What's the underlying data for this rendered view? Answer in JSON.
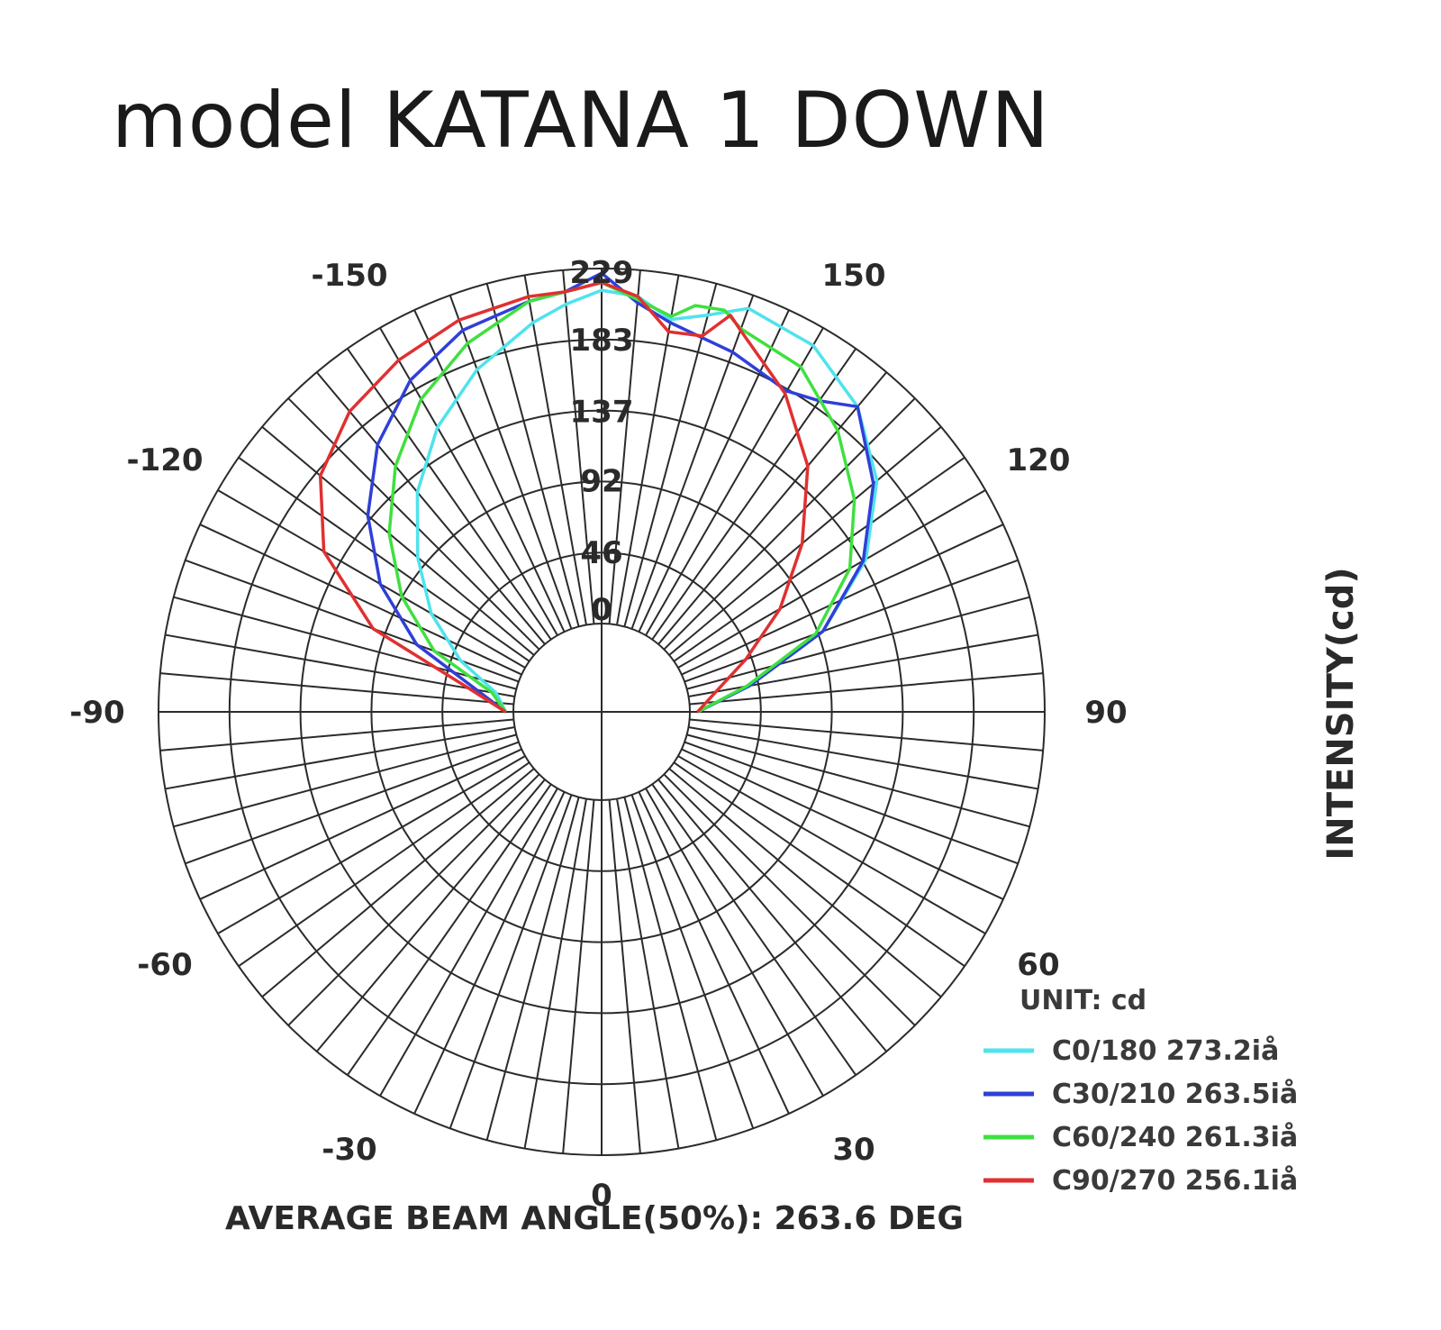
{
  "title": "model KATANA 1 DOWN",
  "chart_data": {
    "type": "polar",
    "angle_ticks": [
      {
        "angle": -150,
        "label": "-150"
      },
      {
        "angle": 150,
        "label": "150"
      },
      {
        "angle": -120,
        "label": "-120"
      },
      {
        "angle": 120,
        "label": "120"
      },
      {
        "angle": -90,
        "label": "-90"
      },
      {
        "angle": 90,
        "label": "90"
      },
      {
        "angle": -60,
        "label": "-60"
      },
      {
        "angle": 60,
        "label": "60"
      },
      {
        "angle": -30,
        "label": "-30"
      },
      {
        "angle": 30,
        "label": "30"
      },
      {
        "angle": 0,
        "label": "0"
      }
    ],
    "radial_ticks": [
      0,
      46,
      92,
      137,
      183,
      229
    ],
    "radial_tick_labels": [
      "0",
      "46",
      "92",
      "137",
      "183",
      "229"
    ],
    "rmax": 229,
    "grid": true,
    "ylabel": "INTENSITY(cd)",
    "unit_label": "UNIT: cd",
    "legend_position": "bottom-right",
    "footer": "AVERAGE BEAM ANGLE(50%): 263.6 DEG",
    "series": [
      {
        "name": "C0/180 273.2iå",
        "color": "#4fe3ec",
        "angles": [
          -90,
          -100,
          -110,
          -120,
          -130,
          -140,
          -150,
          -160,
          -170,
          -175,
          180,
          175,
          170,
          165,
          160,
          150,
          140,
          130,
          120,
          110,
          100,
          90
        ],
        "values": [
          5,
          12,
          40,
          70,
          98,
          128,
          155,
          178,
          198,
          207,
          215,
          212,
          200,
          208,
          220,
          216,
          200,
          175,
          140,
          95,
          40,
          5
        ]
      },
      {
        "name": "C30/210 263.5iå",
        "color": "#2f3fd8",
        "angles": [
          -90,
          -100,
          -110,
          -120,
          -130,
          -140,
          -150,
          -160,
          -170,
          -175,
          180,
          175,
          170,
          160,
          150,
          145,
          140,
          130,
          120,
          110,
          100,
          90
        ],
        "values": [
          5,
          25,
          70,
          108,
          140,
          168,
          190,
          205,
          212,
          215,
          226,
          208,
          198,
          190,
          182,
          188,
          200,
          172,
          138,
          95,
          40,
          5
        ]
      },
      {
        "name": "C60/240 261.3iå",
        "color": "#3fe03f",
        "angles": [
          -90,
          -100,
          -110,
          -120,
          -130,
          -140,
          -150,
          -160,
          -170,
          -175,
          180,
          175,
          170,
          167,
          163,
          160,
          150,
          140,
          130,
          120,
          110,
          100,
          90
        ],
        "values": [
          5,
          15,
          58,
          92,
          122,
          150,
          176,
          196,
          212,
          215,
          220,
          210,
          202,
          212,
          214,
          206,
          200,
          180,
          156,
          128,
          90,
          38,
          5
        ]
      },
      {
        "name": "C90/270 256.1iå",
        "color": "#e03030",
        "angles": [
          -90,
          -100,
          -110,
          -120,
          -130,
          -140,
          -150,
          -160,
          -170,
          -175,
          180,
          175,
          170,
          165,
          162,
          160,
          150,
          140,
          130,
          120,
          110,
          100,
          90
        ],
        "values": [
          5,
          30,
          100,
          150,
          180,
          196,
          205,
          212,
          215,
          215,
          220,
          212,
          192,
          194,
          212,
          205,
          180,
          150,
          112,
          76,
          42,
          18,
          5
        ]
      }
    ]
  }
}
